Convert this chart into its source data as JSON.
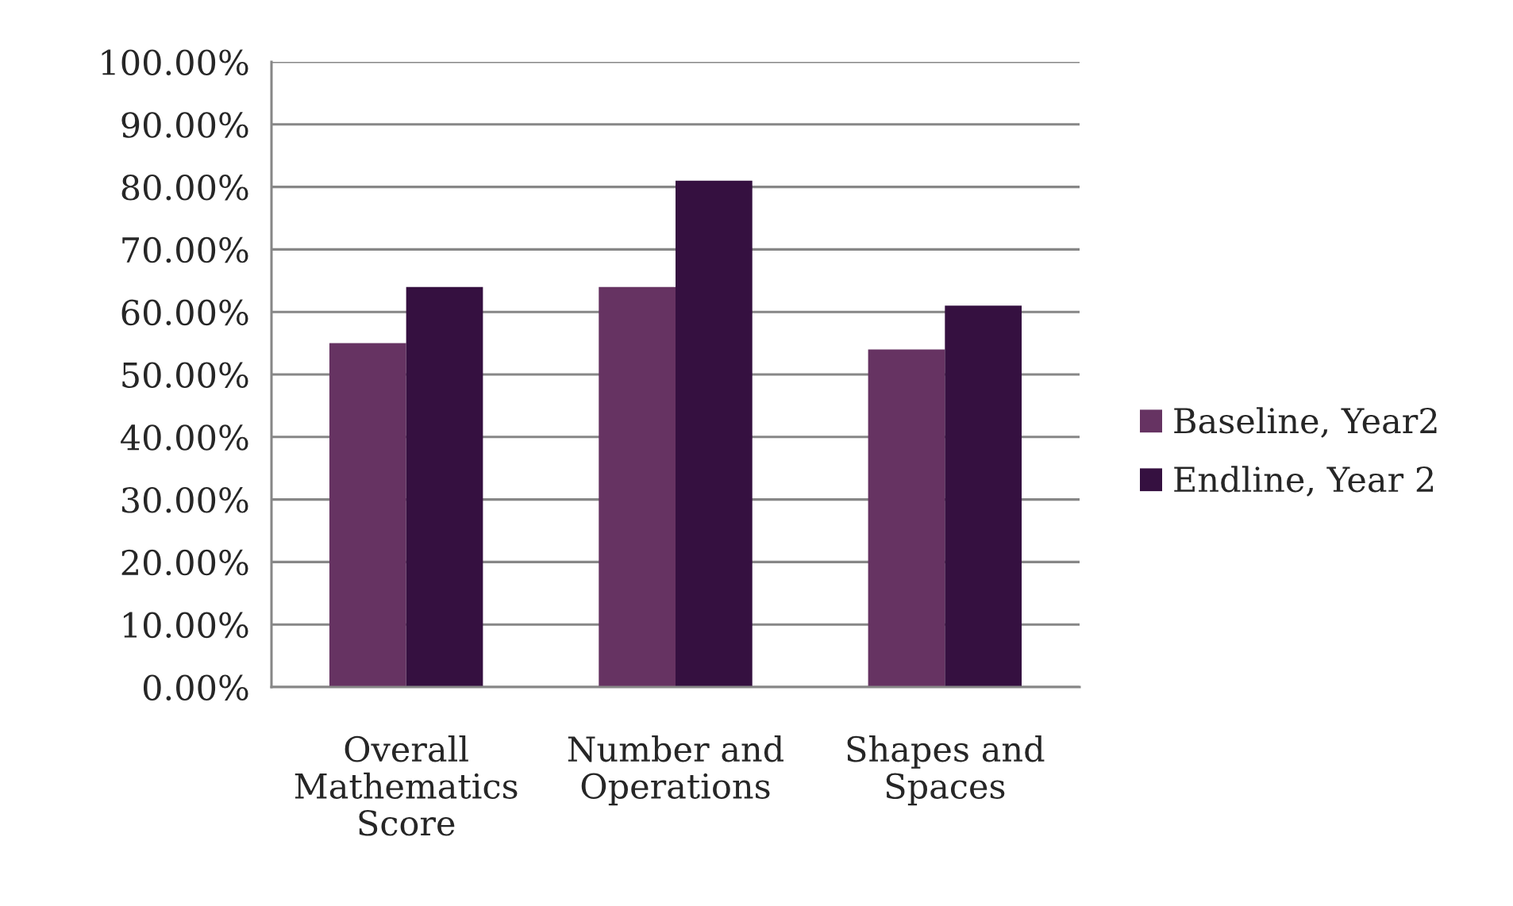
{
  "chart_data": {
    "type": "bar",
    "categories": [
      "Overall Mathematics Score",
      "Number and Operations",
      "Shapes and Spaces"
    ],
    "series": [
      {
        "name": "Baseline, Year2",
        "color": "#663362",
        "values": [
          55,
          64,
          54
        ]
      },
      {
        "name": "Endline, Year 2",
        "color": "#351040",
        "values": [
          64,
          81,
          61
        ]
      }
    ],
    "ylim": [
      0,
      100
    ],
    "yticks": [
      {
        "value": 0,
        "label": "0.00%"
      },
      {
        "value": 10,
        "label": "10.00%"
      },
      {
        "value": 20,
        "label": "20.00%"
      },
      {
        "value": 30,
        "label": "30.00%"
      },
      {
        "value": 40,
        "label": "40.00%"
      },
      {
        "value": 50,
        "label": "50.00%"
      },
      {
        "value": 60,
        "label": "60.00%"
      },
      {
        "value": 70,
        "label": "70.00%"
      },
      {
        "value": 80,
        "label": "80.00%"
      },
      {
        "value": 90,
        "label": "90.00%"
      },
      {
        "value": 100,
        "label": "100.00%"
      }
    ],
    "grid": "y",
    "legend": "right"
  }
}
